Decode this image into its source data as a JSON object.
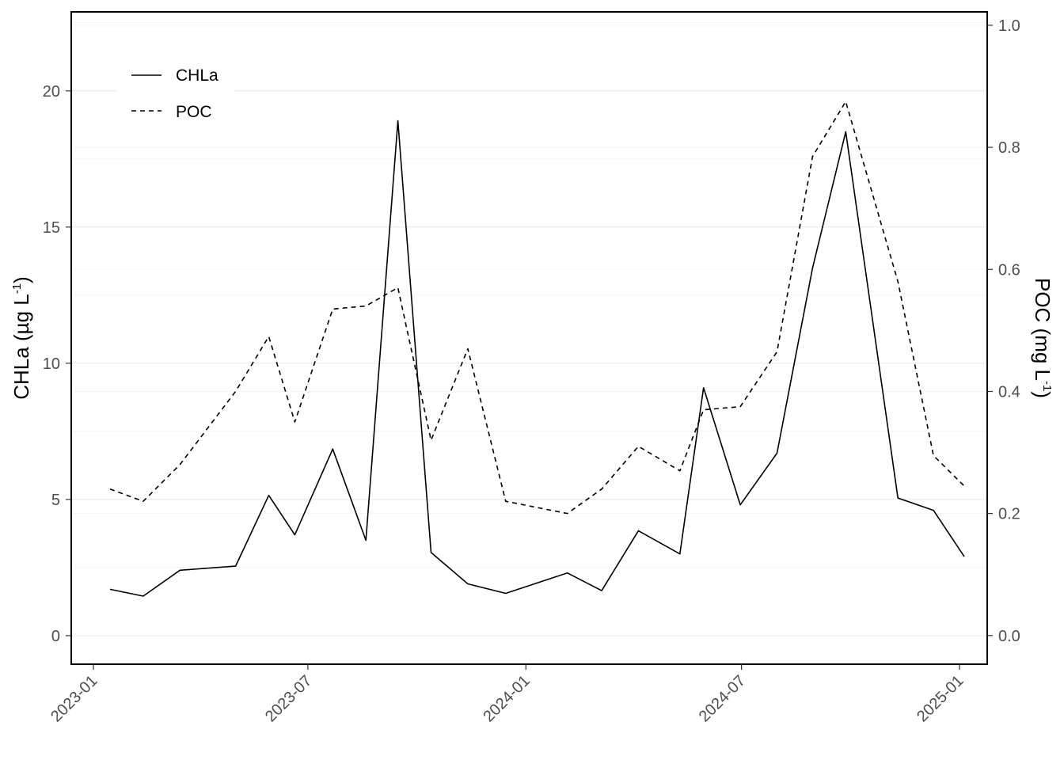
{
  "chart_data": {
    "type": "line",
    "x_axis": {
      "ticks": [
        "2023-01",
        "2023-07",
        "2024-01",
        "2024-07",
        "2025-01"
      ]
    },
    "y_left": {
      "label_main": "CHLa (µg L",
      "label_sup": "-1",
      "label_end": ")",
      "ylim": [
        -1.05,
        22.9
      ],
      "ticks": [
        0,
        5,
        10,
        15,
        20
      ],
      "tick_labels": [
        "0",
        "5",
        "10",
        "15",
        "20"
      ]
    },
    "y_right": {
      "label_main": "POC (mg L",
      "label_sup": "-1",
      "label_end": ")",
      "ylim": [
        -0.047,
        1.022
      ],
      "ticks": [
        0.0,
        0.2,
        0.4,
        0.6,
        0.8,
        1.0
      ],
      "tick_labels": [
        "0.0",
        "0.2",
        "0.4",
        "0.6",
        "0.8",
        "1.0"
      ]
    },
    "legend": {
      "position": "top-left",
      "entries": [
        {
          "label": "CHLa",
          "dash": "solid"
        },
        {
          "label": "POC",
          "dash": "dashed"
        }
      ]
    },
    "grid": true,
    "series": [
      {
        "name": "CHLa",
        "axis": "left",
        "dash": "solid",
        "points": [
          [
            "2023-01-15",
            1.7
          ],
          [
            "2023-02-12",
            1.45
          ],
          [
            "2023-03-15",
            2.4
          ],
          [
            "2023-05-01",
            2.55
          ],
          [
            "2023-05-29",
            5.15
          ],
          [
            "2023-06-20",
            3.7
          ],
          [
            "2023-07-22",
            6.85
          ],
          [
            "2023-08-19",
            3.5
          ],
          [
            "2023-09-15",
            18.9
          ],
          [
            "2023-10-13",
            3.05
          ],
          [
            "2023-11-13",
            1.9
          ],
          [
            "2023-12-15",
            1.55
          ],
          [
            "2024-02-05",
            2.3
          ],
          [
            "2024-03-05",
            1.65
          ],
          [
            "2024-04-05",
            3.85
          ],
          [
            "2024-05-10",
            3.0
          ],
          [
            "2024-05-30",
            9.1
          ],
          [
            "2024-06-30",
            4.8
          ],
          [
            "2024-07-31",
            6.7
          ],
          [
            "2024-08-30",
            13.5
          ],
          [
            "2024-09-27",
            18.5
          ],
          [
            "2024-11-10",
            5.05
          ],
          [
            "2024-12-10",
            4.6
          ],
          [
            "2025-01-05",
            2.9
          ]
        ]
      },
      {
        "name": "POC",
        "axis": "right",
        "dash": "dashed",
        "points": [
          [
            "2023-01-15",
            0.24
          ],
          [
            "2023-02-12",
            0.22
          ],
          [
            "2023-03-15",
            0.28
          ],
          [
            "2023-05-01",
            0.4
          ],
          [
            "2023-05-29",
            0.49
          ],
          [
            "2023-06-20",
            0.35
          ],
          [
            "2023-07-22",
            0.535
          ],
          [
            "2023-08-19",
            0.54
          ],
          [
            "2023-09-15",
            0.57
          ],
          [
            "2023-10-13",
            0.32
          ],
          [
            "2023-11-13",
            0.47
          ],
          [
            "2023-12-15",
            0.22
          ],
          [
            "2024-02-05",
            0.2
          ],
          [
            "2024-03-05",
            0.24
          ],
          [
            "2024-04-05",
            0.31
          ],
          [
            "2024-05-10",
            0.27
          ],
          [
            "2024-05-30",
            0.37
          ],
          [
            "2024-06-30",
            0.375
          ],
          [
            "2024-07-31",
            0.465
          ],
          [
            "2024-08-30",
            0.785
          ],
          [
            "2024-09-27",
            0.875
          ],
          [
            "2024-11-10",
            0.58
          ],
          [
            "2024-12-10",
            0.295
          ],
          [
            "2025-01-05",
            0.245
          ]
        ]
      }
    ]
  }
}
